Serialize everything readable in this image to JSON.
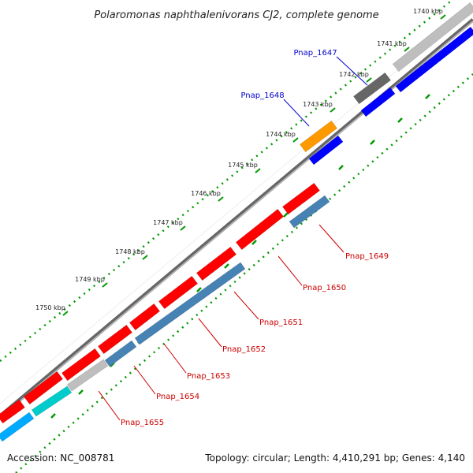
{
  "title": "Polaromonas naphthalenivorans CJ2, complete genome",
  "ticks": [
    "1740 kbp",
    "1741 kbp",
    "1742 kbp",
    "1743 kbp",
    "1744 kbp",
    "1745 kbp",
    "1746 kbp",
    "1747 kbp",
    "1748 kbp",
    "1749 kbp",
    "1750 kbp"
  ],
  "genes_forward": [
    {
      "label": "Pnap_1647",
      "color": "#0000cc"
    },
    {
      "label": "Pnap_1648",
      "color": "#0000cc"
    }
  ],
  "genes_reverse": [
    {
      "label": "Pnap_1649",
      "color": "#cc0000"
    },
    {
      "label": "Pnap_1650",
      "color": "#cc0000"
    },
    {
      "label": "Pnap_1651",
      "color": "#cc0000"
    },
    {
      "label": "Pnap_1652",
      "color": "#cc0000"
    },
    {
      "label": "Pnap_1653",
      "color": "#cc0000"
    },
    {
      "label": "Pnap_1654",
      "color": "#cc0000"
    },
    {
      "label": "Pnap_1655",
      "color": "#cc0000"
    }
  ],
  "footer": {
    "accession": "Accession: NC_008781",
    "topology": "Topology: circular; Length: 4,410,291 bp; Genes: 4,140"
  },
  "colors": {
    "red": "#ff0000",
    "blue": "#0000ff",
    "steelblue": "#4682b4",
    "gray": "#bebebe",
    "darkgray": "#666666",
    "orange": "#ff9900",
    "cyan": "#00cccc",
    "skyblue": "#00aaff",
    "backbone": "#888888",
    "dots": "#006600"
  }
}
